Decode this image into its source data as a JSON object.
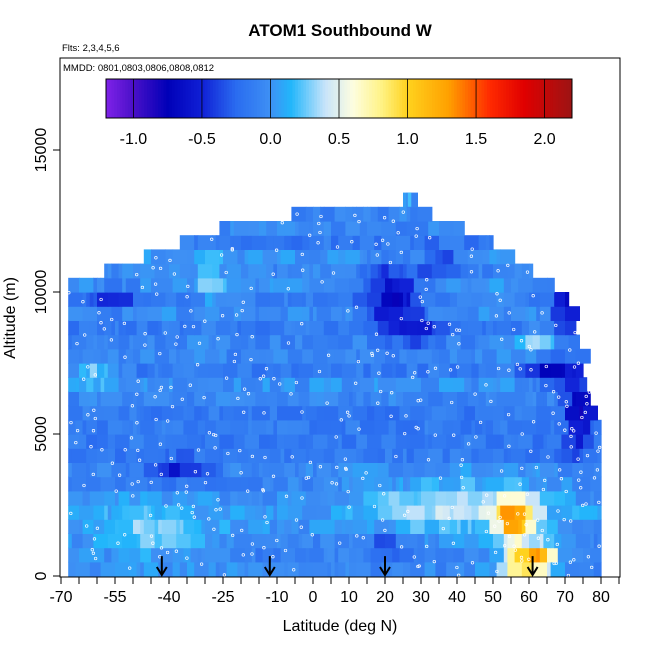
{
  "chart_data": {
    "type": "heatmap",
    "title": "ATOM1 Southbound W",
    "flights_note": "Flts: 2,3,4,5,6",
    "dates_note": "MMDD: 0801,0803,0806,0808,0812",
    "xlabel": "Latitude (deg N)",
    "ylabel": "Altitude (m)",
    "xlim": [
      -70,
      85
    ],
    "ylim": [
      0,
      17500
    ],
    "x_tick_labels": [
      "-70",
      "-55",
      "-40",
      "-25",
      "-10",
      "0",
      "10",
      "20",
      "30",
      "40",
      "50",
      "60",
      "70",
      "80"
    ],
    "x_tick_values": [
      -70,
      -55,
      -40,
      -25,
      -10,
      0,
      10,
      20,
      30,
      40,
      50,
      60,
      70,
      80
    ],
    "x_minor_ticks": [
      -65,
      -60,
      -50,
      -45,
      -35,
      -30,
      -20,
      -15,
      -5,
      5,
      15,
      25,
      35,
      45,
      55,
      65,
      75,
      85
    ],
    "y_tick_labels": [
      "0",
      "5000",
      "10000",
      "15000"
    ],
    "y_tick_values": [
      0,
      5000,
      10000,
      15000
    ],
    "colorbar": {
      "min": -1.2,
      "max": 2.2,
      "tick_labels": [
        "-1.0",
        "-0.5",
        "0.0",
        "0.5",
        "1.0",
        "1.5",
        "2.0"
      ],
      "tick_values": [
        -1.0,
        -0.5,
        0.0,
        0.5,
        1.0,
        1.5,
        2.0
      ],
      "color_stops": [
        {
          "v": -1.2,
          "c": "#7f22e8"
        },
        {
          "v": -1.0,
          "c": "#4a10c8"
        },
        {
          "v": -0.75,
          "c": "#0000b8"
        },
        {
          "v": -0.5,
          "c": "#1020d6"
        },
        {
          "v": -0.25,
          "c": "#2a6cf0"
        },
        {
          "v": 0.0,
          "c": "#3e90f4"
        },
        {
          "v": 0.15,
          "c": "#22b6fb"
        },
        {
          "v": 0.4,
          "c": "#c8e4fa"
        },
        {
          "v": 0.6,
          "c": "#fdfde0"
        },
        {
          "v": 0.8,
          "c": "#fff48a"
        },
        {
          "v": 1.0,
          "c": "#ffd21e"
        },
        {
          "v": 1.3,
          "c": "#ffa000"
        },
        {
          "v": 1.6,
          "c": "#ff2a00"
        },
        {
          "v": 1.85,
          "c": "#e00000"
        },
        {
          "v": 2.2,
          "c": "#9c1414"
        }
      ]
    },
    "coverage": {
      "altitude_bin_m": 500,
      "top_by_latitude": [
        {
          "lat": -67,
          "alt": 10500
        },
        {
          "lat": -53,
          "alt": 11000
        },
        {
          "lat": -43,
          "alt": 11500
        },
        {
          "lat": -33,
          "alt": 12000
        },
        {
          "lat": -18,
          "alt": 12500
        },
        {
          "lat": 5,
          "alt": 13000
        },
        {
          "lat": 23,
          "alt": 13000
        },
        {
          "lat": 27,
          "alt": 13500
        },
        {
          "lat": 30,
          "alt": 13000
        },
        {
          "lat": 38,
          "alt": 12500
        },
        {
          "lat": 48,
          "alt": 12000
        },
        {
          "lat": 55,
          "alt": 11500
        },
        {
          "lat": 60,
          "alt": 11000
        },
        {
          "lat": 66,
          "alt": 10500
        },
        {
          "lat": 70,
          "alt": 10000
        },
        {
          "lat": 74,
          "alt": 9000
        },
        {
          "lat": 76,
          "alt": 7500
        },
        {
          "lat": 78,
          "alt": 6000
        },
        {
          "lat": 80,
          "alt": 5000
        }
      ],
      "lat_min": -68,
      "lat_max": 80
    },
    "features": [
      {
        "type": "updraft",
        "lat": 56,
        "alt": 2000,
        "w": 1.3,
        "dlat": 5,
        "dalt": 700
      },
      {
        "type": "updraft",
        "lat": 58,
        "alt": 500,
        "w": 1.0,
        "dlat": 6,
        "dalt": 500
      },
      {
        "type": "updraft",
        "lat": 63,
        "alt": 700,
        "w": 0.8,
        "dlat": 5,
        "dalt": 500
      },
      {
        "type": "positive-band",
        "lat": 40,
        "alt": 2500,
        "w": 0.35,
        "dlat": 25,
        "dalt": 900
      },
      {
        "type": "positive-band",
        "lat": -45,
        "alt": 1500,
        "w": 0.25,
        "dlat": 18,
        "dalt": 1000
      },
      {
        "type": "positive-band",
        "lat": -60,
        "alt": 7200,
        "w": 0.3,
        "dlat": 6,
        "dalt": 500
      },
      {
        "type": "positive-band",
        "lat": 62,
        "alt": 8100,
        "w": 0.35,
        "dlat": 6,
        "dalt": 500
      },
      {
        "type": "positive-band",
        "lat": -28,
        "alt": 10500,
        "w": 0.2,
        "dlat": 4,
        "dalt": 900
      },
      {
        "type": "downdraft",
        "lat": 22,
        "alt": 9800,
        "w": -0.75,
        "dlat": 7,
        "dalt": 1100
      },
      {
        "type": "downdraft",
        "lat": 72,
        "alt": 9800,
        "w": -0.8,
        "dlat": 5,
        "dalt": 1000
      },
      {
        "type": "downdraft",
        "lat": 74,
        "alt": 6000,
        "w": -0.7,
        "dlat": 4,
        "dalt": 1500
      },
      {
        "type": "downdraft",
        "lat": 66,
        "alt": 7300,
        "w": -0.65,
        "dlat": 6,
        "dalt": 500
      },
      {
        "type": "downdraft",
        "lat": -38,
        "alt": 3700,
        "w": -0.55,
        "dlat": 10,
        "dalt": 400
      },
      {
        "type": "downdraft",
        "lat": -56,
        "alt": 9800,
        "w": -0.5,
        "dlat": 8,
        "dalt": 400
      },
      {
        "type": "downdraft",
        "lat": 20,
        "alt": 1200,
        "w": -0.45,
        "dlat": 4,
        "dalt": 500
      },
      {
        "type": "downdraft",
        "lat": 30,
        "alt": 8600,
        "w": -0.4,
        "dlat": 5,
        "dalt": 600
      },
      {
        "type": "downdraft",
        "lat": 36,
        "alt": 11000,
        "w": -0.45,
        "dlat": 6,
        "dalt": 500
      }
    ],
    "base_w": -0.08,
    "marker_latitudes": [
      -42,
      -12,
      20,
      61
    ],
    "marker_top_alt": 700,
    "observation_points": "sparse white circles along flight tracks"
  }
}
